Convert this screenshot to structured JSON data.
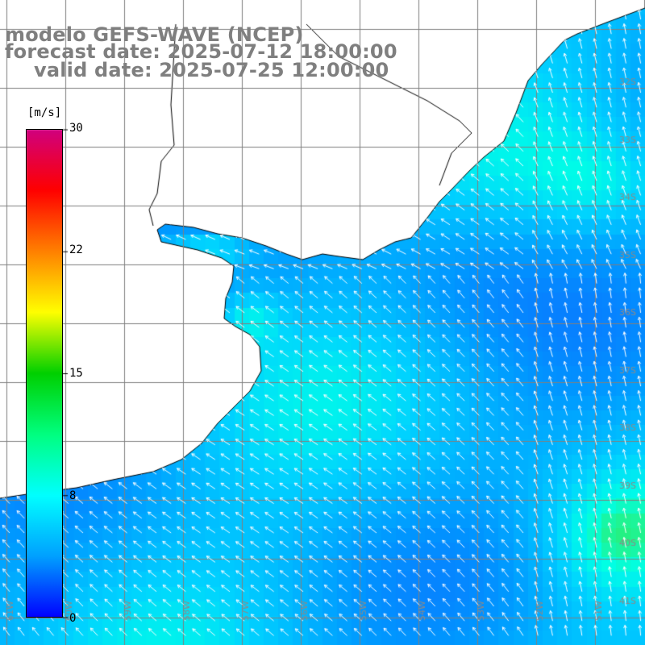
{
  "title": {
    "line1": "modelo GEFS-WAVE (NCEP)",
    "line2": "forecast date: 2025-07-12 18:00:00",
    "line3": "valid date: 2025-07-25 12:00:00"
  },
  "colorbar": {
    "unit": "[m/s]",
    "min": 0,
    "max": 30,
    "ticks": [
      "30",
      "22",
      "15",
      "8",
      "0"
    ],
    "tick_values": [
      30,
      22.5,
      15,
      7.5,
      0
    ],
    "colors": [
      "#0000ff",
      "#00a0ff",
      "#00ffff",
      "#00ff80",
      "#00d000",
      "#ffff00",
      "#ff8000",
      "#ff0000",
      "#d00080"
    ]
  },
  "map": {
    "lon_labels": [
      "61W",
      "60W",
      "59W",
      "58W",
      "57W",
      "56W",
      "55W",
      "54W",
      "53W",
      "52W",
      "51W"
    ],
    "lat_labels": [
      "32S",
      "33S",
      "34S",
      "35S",
      "36S",
      "37S",
      "38S",
      "39S",
      "40S",
      "41S"
    ],
    "land_color": "#ffffff",
    "grid_color": "#808080",
    "arrow_color": "#ffffff"
  }
}
